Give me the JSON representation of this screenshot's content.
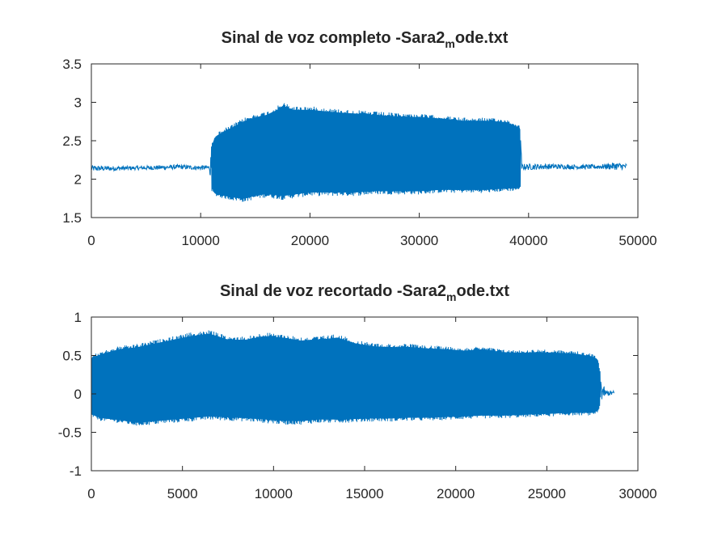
{
  "figure_background": "#ffffff",
  "chart_data": [
    {
      "type": "line",
      "title": "Sinal de voz completo -Sara2",
      "title_subscript": "m",
      "title_suffix": "ode.txt",
      "xlabel": "",
      "ylabel": "",
      "xlim": [
        0,
        50000
      ],
      "ylim": [
        1.5,
        3.5
      ],
      "xticks": [
        0,
        10000,
        20000,
        30000,
        40000,
        50000
      ],
      "xtick_labels": [
        "0",
        "10000",
        "20000",
        "30000",
        "40000",
        "50000"
      ],
      "yticks": [
        1.5,
        2,
        2.5,
        3,
        3.5
      ],
      "ytick_labels": [
        "1.5",
        "2",
        "2.5",
        "3",
        "3.5"
      ],
      "grid": false,
      "color": "#0072bd",
      "series": [
        {
          "envelope": {
            "x": [
              0,
              2000,
              4000,
              6000,
              8000,
              9500,
              10800,
              11000,
              11300,
              12000,
              13000,
              14000,
              15000,
              16000,
              17000,
              17500,
              18500,
              20000,
              22000,
              24000,
              26000,
              28000,
              30000,
              32000,
              34000,
              36000,
              38000,
              39200,
              39400,
              40000,
              42000,
              44000,
              46000,
              47000,
              48000,
              49000
            ],
            "upper": [
              2.18,
              2.17,
              2.17,
              2.18,
              2.19,
              2.18,
              2.18,
              2.45,
              2.58,
              2.65,
              2.72,
              2.8,
              2.85,
              2.88,
              2.95,
              3.0,
              2.95,
              2.95,
              2.92,
              2.9,
              2.88,
              2.86,
              2.85,
              2.83,
              2.8,
              2.8,
              2.78,
              2.7,
              2.2,
              2.2,
              2.2,
              2.19,
              2.19,
              2.2,
              2.22,
              2.2
            ],
            "lower": [
              2.1,
              2.11,
              2.12,
              2.12,
              2.13,
              2.12,
              2.12,
              1.85,
              1.78,
              1.75,
              1.72,
              1.7,
              1.74,
              1.76,
              1.74,
              1.73,
              1.75,
              1.78,
              1.78,
              1.78,
              1.8,
              1.8,
              1.8,
              1.82,
              1.82,
              1.82,
              1.84,
              1.85,
              2.12,
              2.12,
              2.13,
              2.13,
              2.13,
              2.13,
              2.12,
              2.13
            ]
          }
        }
      ]
    },
    {
      "type": "line",
      "title": "Sinal de voz recortado -Sara2",
      "title_subscript": "m",
      "title_suffix": "ode.txt",
      "xlabel": "",
      "ylabel": "",
      "xlim": [
        0,
        30000
      ],
      "ylim": [
        -1,
        1
      ],
      "xticks": [
        0,
        5000,
        10000,
        15000,
        20000,
        25000,
        30000
      ],
      "xtick_labels": [
        "0",
        "5000",
        "10000",
        "15000",
        "20000",
        "25000",
        "30000"
      ],
      "yticks": [
        -1,
        -0.5,
        0,
        0.5,
        1
      ],
      "ytick_labels": [
        "-1",
        "-0.5",
        "0",
        "0.5",
        "1"
      ],
      "grid": false,
      "color": "#0072bd",
      "series": [
        {
          "envelope": {
            "x": [
              0,
              500,
              1500,
              2500,
              3500,
              4500,
              5500,
              6500,
              7500,
              8500,
              9500,
              10500,
              11500,
              12500,
              13500,
              14500,
              15500,
              16500,
              17500,
              18500,
              19500,
              20500,
              21500,
              22500,
              23500,
              24500,
              25500,
              26500,
              27500,
              27800,
              28000,
              28200,
              28700
            ],
            "upper": [
              0.5,
              0.55,
              0.62,
              0.65,
              0.7,
              0.75,
              0.8,
              0.83,
              0.75,
              0.75,
              0.8,
              0.78,
              0.74,
              0.75,
              0.78,
              0.7,
              0.66,
              0.65,
              0.65,
              0.63,
              0.62,
              0.6,
              0.62,
              0.58,
              0.57,
              0.58,
              0.57,
              0.56,
              0.52,
              0.48,
              0.2,
              0.05,
              0.04
            ],
            "lower": [
              -0.3,
              -0.35,
              -0.38,
              -0.42,
              -0.4,
              -0.38,
              -0.36,
              -0.34,
              -0.35,
              -0.36,
              -0.38,
              -0.4,
              -0.4,
              -0.38,
              -0.38,
              -0.37,
              -0.36,
              -0.36,
              -0.35,
              -0.35,
              -0.34,
              -0.33,
              -0.32,
              -0.32,
              -0.31,
              -0.3,
              -0.29,
              -0.28,
              -0.28,
              -0.25,
              -0.1,
              -0.03,
              -0.02
            ]
          }
        }
      ]
    }
  ]
}
